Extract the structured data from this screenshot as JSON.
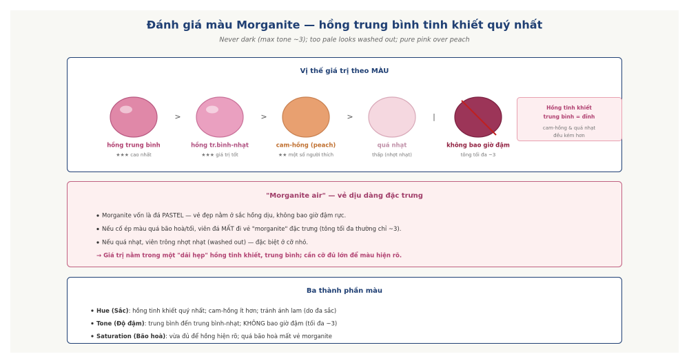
{
  "header": {
    "title": "Đánh giá màu Morganite — hồng trung bình tinh khiết quý nhất",
    "subtitle": "Never dark (max tone ~3); too pale looks washed out; pure pink over peach"
  },
  "value_panel": {
    "heading": "Vị thế giá trị theo MÀU",
    "items": [
      {
        "label": "hồng trung bình",
        "rating": "★★★ cao nhất"
      },
      {
        "label": "hồng tr.bình-nhạt",
        "rating": "★★★ giá trị tốt"
      },
      {
        "label": "cam-hồng (peach)",
        "rating": "★★ một số người thích"
      },
      {
        "label": "quá nhạt",
        "rating": "thấp (nhợt nhạt)"
      },
      {
        "label": "không bao giờ đậm",
        "rating": "tông tối đa ~3"
      }
    ],
    "separators": [
      ">",
      ">",
      ">",
      "|"
    ],
    "callout": {
      "title_lines": [
        "Hồng tinh khiết",
        "trung bình = đỉnh"
      ],
      "body_lines": [
        "cam-hồng & quá nhạt",
        "đều kém hơn"
      ]
    }
  },
  "air_panel": {
    "heading": "\"Morganite air\" — vẻ dịu dàng đặc trưng",
    "bullets": [
      "Morganite vốn là đá PASTEL — vẻ đẹp nằm ở sắc hồng dịu, không bao giờ đậm rực.",
      "Nếu cố ép màu quá bão hoà/tối, viên đá MẤT đi vẻ \"morganite\" đặc trưng (tông tối đa thường chỉ ~3).",
      "Nếu quá nhạt, viên trông nhợt nhạt (washed out) — đặc biệt ở cỡ nhỏ."
    ],
    "conclusion": "→ Giá trị nằm trong một \"dải hẹp\" hồng tinh khiết, trung bình; cần cỡ đủ lớn để màu hiện rõ."
  },
  "components": {
    "heading": "Ba thành phần màu",
    "items": [
      {
        "term": "Hue (Sắc)",
        "text": ": hồng tinh khiết quý nhất; cam-hồng ít hơn; tránh ánh lam (do đa sắc)"
      },
      {
        "term": "Tone (Độ đậm)",
        "text": ": trung bình đến trung bình-nhạt; KHÔNG bao giờ đậm (tối đa ~3)"
      },
      {
        "term": "Saturation (Bão hoà)",
        "text": ": vừa đủ để hồng hiện rõ; quá bão hoà mất vẻ morganite"
      }
    ]
  }
}
